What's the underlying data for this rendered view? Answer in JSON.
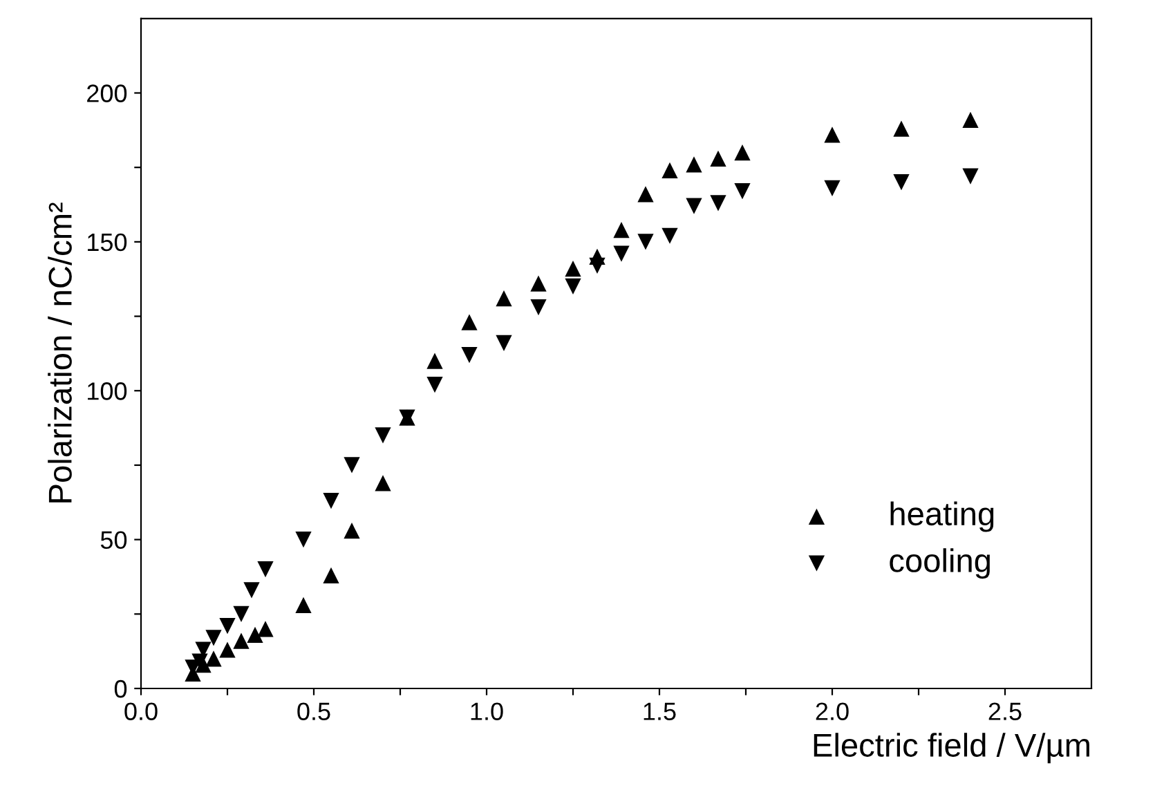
{
  "chart_data": {
    "type": "scatter",
    "xlabel": "Electric field / V/µm",
    "ylabel": "Polarization / nC/cm²",
    "xlim": [
      0,
      2.75
    ],
    "ylim": [
      0,
      225
    ],
    "xticks": [
      {
        "value": 0,
        "label": "0.0"
      },
      {
        "value": 0.25,
        "label": null
      },
      {
        "value": 0.5,
        "label": "0.5"
      },
      {
        "value": 0.75,
        "label": null
      },
      {
        "value": 1.0,
        "label": "1.0"
      },
      {
        "value": 1.25,
        "label": null
      },
      {
        "value": 1.5,
        "label": "1.5"
      },
      {
        "value": 1.75,
        "label": null
      },
      {
        "value": 2.0,
        "label": "2.0"
      },
      {
        "value": 2.25,
        "label": null
      },
      {
        "value": 2.5,
        "label": "2.5"
      }
    ],
    "yticks": [
      0,
      {
        "value": 25,
        "label": null
      },
      50,
      {
        "value": 75,
        "label": null
      },
      100,
      {
        "value": 125,
        "label": null
      },
      150,
      {
        "value": 175,
        "label": null
      },
      200
    ],
    "grid": false,
    "legend": "bottom right",
    "series": [
      {
        "name": "heating",
        "color": "#000000",
        "marker": "triangle",
        "x": [
          0.15,
          0.18,
          0.21,
          0.25,
          0.29,
          0.33,
          0.36,
          0.47,
          0.55,
          0.61,
          0.7,
          0.77,
          0.85,
          0.95,
          1.05,
          1.15,
          1.25,
          1.32,
          1.39,
          1.46,
          1.53,
          1.6,
          1.67,
          1.74,
          2.0,
          2.2,
          2.4
        ],
        "values": [
          5,
          8,
          10,
          13,
          16,
          18,
          20,
          28,
          38,
          53,
          69,
          91,
          110,
          123,
          131,
          136,
          141,
          145,
          154,
          166,
          174,
          176,
          178,
          180,
          186,
          188,
          191
        ]
      },
      {
        "name": "cooling",
        "color": "#000000",
        "marker": "triangle_down",
        "x": [
          0.15,
          0.17,
          0.18,
          0.21,
          0.25,
          0.29,
          0.32,
          0.36,
          0.47,
          0.55,
          0.61,
          0.7,
          0.77,
          0.85,
          0.95,
          1.05,
          1.15,
          1.25,
          1.32,
          1.39,
          1.46,
          1.53,
          1.6,
          1.67,
          1.74,
          2.0,
          2.2,
          2.4
        ],
        "values": [
          7,
          9,
          13,
          17,
          21,
          25,
          33,
          40,
          50,
          63,
          75,
          85,
          91,
          102,
          112,
          116,
          128,
          135,
          142,
          146,
          150,
          152,
          162,
          163,
          167,
          168,
          170,
          172
        ]
      }
    ]
  }
}
